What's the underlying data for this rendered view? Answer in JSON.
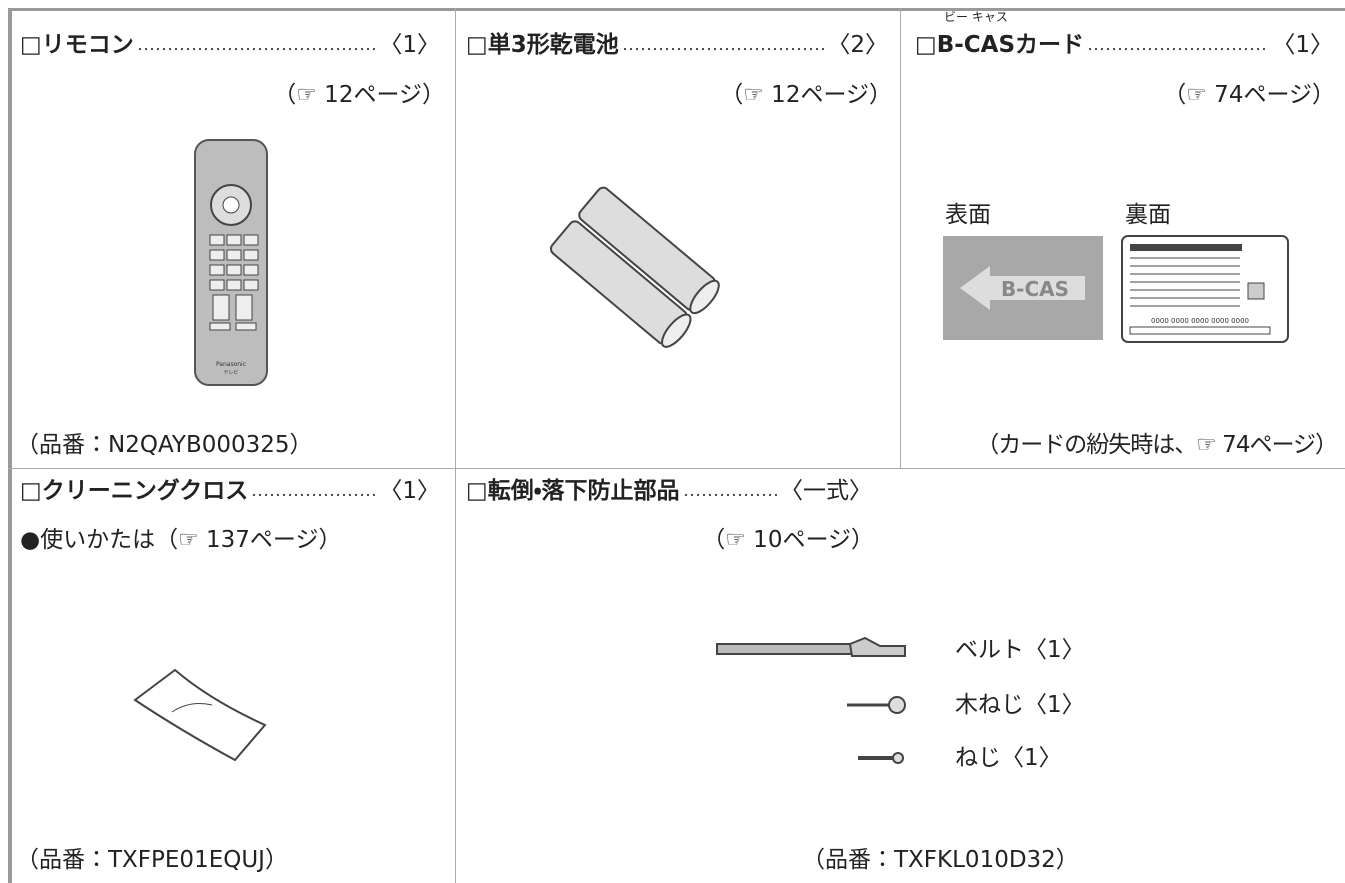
{
  "items": [
    {
      "name": "□リモコン",
      "quantity": "〈1〉",
      "ref": "（☞ 12ページ）",
      "footer": "（品番：N2QAYB000325）",
      "labels": [
        "Panasonic",
        "テレビ"
      ]
    },
    {
      "name": "□単3形乾電池",
      "quantity": "〈2〉",
      "ref": "（☞ 12ページ）"
    },
    {
      "name": "□B-CASカード",
      "ruby": "ビー キャス",
      "quantity": "〈1〉",
      "ref": "（☞ 74ページ）",
      "front": "表面",
      "back": "裏面",
      "card_front_text": "B-CAS",
      "card_back_text": "0000 0000 0000 0000 0000",
      "footer": "（カードの紛失時は、☞ 74ページ）"
    },
    {
      "name": "□クリーニングクロス",
      "quantity": "〈1〉",
      "note": "●使いかたは（☞ 137ページ）",
      "footer": "（品番：TXFPE01EQUJ）"
    },
    {
      "name": "□転倒・落下防止部品",
      "quantity": "〈一式〉",
      "ref": "（☞ 10ページ）",
      "parts": [
        "ベルト〈1〉",
        "木ねじ〈1〉",
        "ねじ〈1〉"
      ],
      "footer": "（品番：TXFKL010D32）"
    }
  ]
}
